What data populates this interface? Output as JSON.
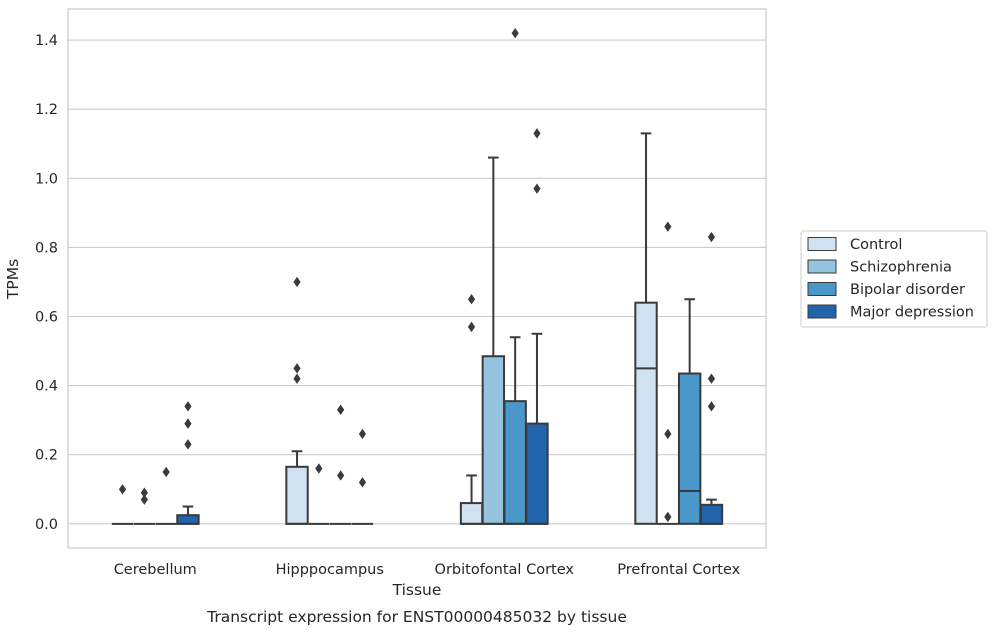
{
  "chart_data": {
    "type": "box",
    "caption": "Transcript expression for ENST00000485032 by tissue",
    "xlabel": "Tissue",
    "ylabel": "TPMs",
    "ylim": [
      -0.07,
      1.49
    ],
    "yticks": [
      0.0,
      0.2,
      0.4,
      0.6,
      0.8,
      1.0,
      1.2,
      1.4
    ],
    "ytick_labels": [
      "0.0",
      "0.2",
      "0.4",
      "0.6",
      "0.8",
      "1.0",
      "1.2",
      "1.4"
    ],
    "grid": "horizontal",
    "legend_position": "right",
    "categories": [
      "Cerebellum",
      "Hipppocampus",
      "Orbitofontal Cortex",
      "Prefrontal Cortex"
    ],
    "series": [
      {
        "name": "Control",
        "color": "#d0e1f2",
        "boxes": [
          {
            "q1": 0.0,
            "median": 0.0,
            "q3": 0.0,
            "whisker_low": 0.0,
            "whisker_high": 0.0,
            "outliers": [
              0.1
            ]
          },
          {
            "q1": 0.0,
            "median": 0.0,
            "q3": 0.165,
            "whisker_low": 0.0,
            "whisker_high": 0.21,
            "outliers": [
              0.42,
              0.45,
              0.7
            ]
          },
          {
            "q1": 0.0,
            "median": 0.0,
            "q3": 0.06,
            "whisker_low": 0.0,
            "whisker_high": 0.14,
            "outliers": [
              0.57,
              0.65
            ]
          },
          {
            "q1": 0.0,
            "median": 0.45,
            "q3": 0.64,
            "whisker_low": 0.0,
            "whisker_high": 1.13,
            "outliers": []
          }
        ]
      },
      {
        "name": "Schizophrenia",
        "color": "#94c4df",
        "boxes": [
          {
            "q1": 0.0,
            "median": 0.0,
            "q3": 0.0,
            "whisker_low": 0.0,
            "whisker_high": 0.0,
            "outliers": [
              0.07,
              0.09
            ]
          },
          {
            "q1": 0.0,
            "median": 0.0,
            "q3": 0.0,
            "whisker_low": 0.0,
            "whisker_high": 0.0,
            "outliers": [
              0.16
            ]
          },
          {
            "q1": 0.0,
            "median": 0.0,
            "q3": 0.485,
            "whisker_low": 0.0,
            "whisker_high": 1.06,
            "outliers": []
          },
          {
            "q1": 0.0,
            "median": 0.0,
            "q3": 0.0,
            "whisker_low": 0.0,
            "whisker_high": 0.0,
            "outliers": [
              0.02,
              0.26,
              0.86
            ]
          }
        ]
      },
      {
        "name": "Bipolar disorder",
        "color": "#4a98c9",
        "boxes": [
          {
            "q1": 0.0,
            "median": 0.0,
            "q3": 0.0,
            "whisker_low": 0.0,
            "whisker_high": 0.0,
            "outliers": [
              0.15
            ]
          },
          {
            "q1": 0.0,
            "median": 0.0,
            "q3": 0.0,
            "whisker_low": 0.0,
            "whisker_high": 0.0,
            "outliers": [
              0.14,
              0.33
            ]
          },
          {
            "q1": 0.0,
            "median": 0.0,
            "q3": 0.355,
            "whisker_low": 0.0,
            "whisker_high": 0.54,
            "outliers": [
              1.42
            ]
          },
          {
            "q1": 0.0,
            "median": 0.095,
            "q3": 0.435,
            "whisker_low": 0.0,
            "whisker_high": 0.65,
            "outliers": []
          }
        ]
      },
      {
        "name": "Major depression",
        "color": "#2164ab",
        "boxes": [
          {
            "q1": 0.0,
            "median": 0.0,
            "q3": 0.025,
            "whisker_low": 0.0,
            "whisker_high": 0.05,
            "outliers": [
              0.23,
              0.29,
              0.34
            ]
          },
          {
            "q1": 0.0,
            "median": 0.0,
            "q3": 0.0,
            "whisker_low": 0.0,
            "whisker_high": 0.0,
            "outliers": [
              0.12,
              0.26
            ]
          },
          {
            "q1": 0.0,
            "median": 0.0,
            "q3": 0.29,
            "whisker_low": 0.0,
            "whisker_high": 0.55,
            "outliers": [
              0.97,
              1.13
            ]
          },
          {
            "q1": 0.0,
            "median": 0.0,
            "q3": 0.055,
            "whisker_low": 0.0,
            "whisker_high": 0.07,
            "outliers": [
              0.34,
              0.42,
              0.83
            ]
          }
        ]
      }
    ]
  }
}
